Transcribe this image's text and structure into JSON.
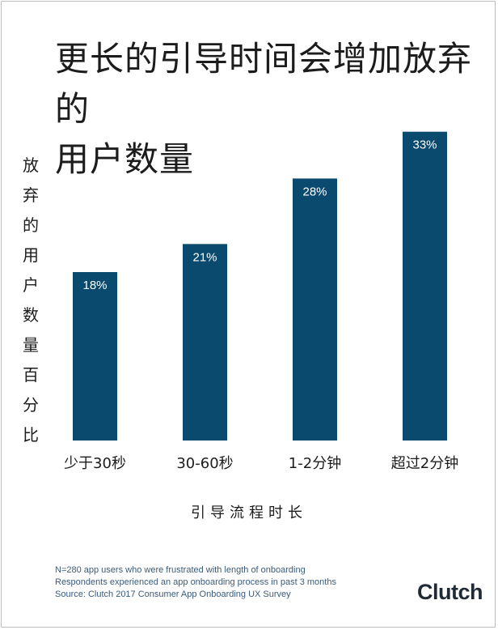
{
  "title_lines": [
    "更长的引导时间会增加放弃的",
    "用户数量"
  ],
  "ylabel": "放弃的用户数量百分比",
  "xlabel": "引导流程时长",
  "colors": {
    "bar": "#0b4a6f",
    "label": "#ffffff",
    "text": "#1c1c1c",
    "footnote": "#3b5b7a"
  },
  "chart_data": {
    "type": "bar",
    "title": "更长的引导时间会增加放弃的用户数量",
    "xlabel": "引导流程时长",
    "ylabel": "放弃的用户数量百分比",
    "categories": [
      "少于30秒",
      "30-60秒",
      "1-2分钟",
      "超过2分钟"
    ],
    "values": [
      18,
      21,
      28,
      33
    ],
    "value_labels": [
      "18%",
      "21%",
      "28%",
      "33%"
    ],
    "ylim": [
      0,
      36
    ],
    "grid": false,
    "legend": "none"
  },
  "footnotes": [
    "N=280 app users who were frustrated with length of onboarding",
    "Respondents experienced an app onboarding process in past 3 months",
    "Source: Clutch 2017 Consumer App Onboarding UX Survey"
  ],
  "logo_text": "Clutch"
}
